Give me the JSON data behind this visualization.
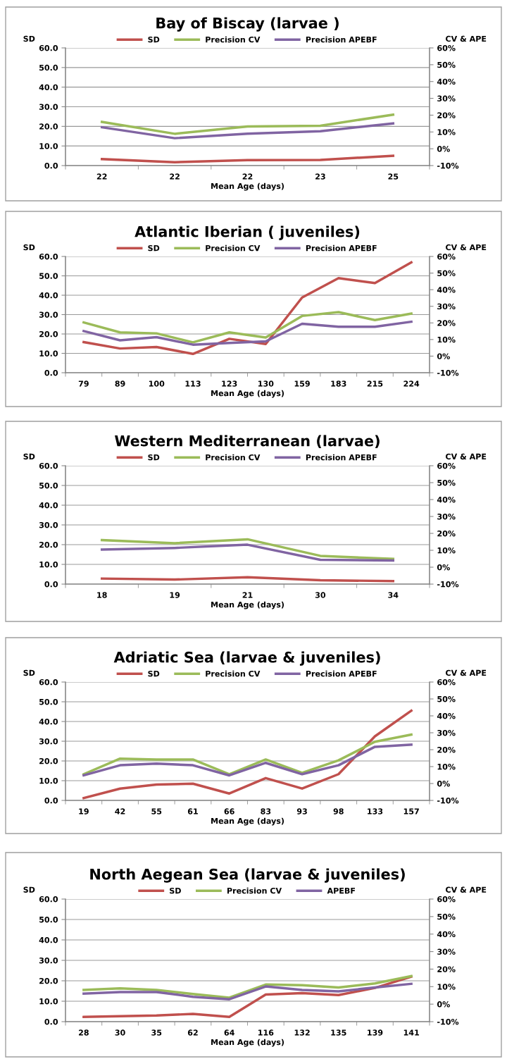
{
  "chart_data": [
    {
      "type": "line",
      "title": "Bay of Biscay (larvae )",
      "xlabel": "Mean Age (days)",
      "ylabel": "SD",
      "y2label": "CV & APE",
      "categories": [
        "22",
        "22",
        "22",
        "23",
        "25"
      ],
      "series": [
        {
          "name": "SD",
          "color": "#c0504d",
          "values": [
            3.3,
            1.7,
            2.8,
            2.9,
            5.0
          ]
        },
        {
          "name": "Precision CV",
          "color": "#9bbb59",
          "axis": "y2",
          "values": [
            16.0,
            8.9,
            13.3,
            13.7,
            20.3
          ]
        },
        {
          "name": "Precision APEBF",
          "color": "#8064a2",
          "axis": "y2",
          "values": [
            12.8,
            6.3,
            9.0,
            10.4,
            15.1
          ]
        }
      ],
      "ylim": [
        0,
        60
      ],
      "yticks": [
        {
          "value": 0,
          "label": "0.0"
        },
        {
          "value": 10,
          "label": "10.0"
        },
        {
          "value": 20,
          "label": "20.0"
        },
        {
          "value": 30,
          "label": "30.0"
        },
        {
          "value": 40,
          "label": "40.0"
        },
        {
          "value": 50,
          "label": "50.0"
        },
        {
          "value": 60,
          "label": "60.0"
        }
      ],
      "y2lim": [
        -10,
        60
      ],
      "y2ticks": [
        {
          "value": -10,
          "label": "-10%"
        },
        {
          "value": 0,
          "label": "0%"
        },
        {
          "value": 10,
          "label": "10%"
        },
        {
          "value": 20,
          "label": "20%"
        },
        {
          "value": 30,
          "label": "30%"
        },
        {
          "value": 40,
          "label": "40%"
        },
        {
          "value": 50,
          "label": "50%"
        },
        {
          "value": 60,
          "label": "60%"
        }
      ],
      "grid": "y",
      "legend": "top",
      "line_style": "solid"
    },
    {
      "type": "line",
      "title": "Atlantic Iberian ( juveniles)",
      "xlabel": "Mean Age (days)",
      "ylabel": "SD",
      "y2label": "CV & APE",
      "categories": [
        "79",
        "89",
        "100",
        "113",
        "123",
        "130",
        "159",
        "183",
        "215",
        "224"
      ],
      "series": [
        {
          "name": "SD",
          "color": "#c0504d",
          "values": [
            15.8,
            12.5,
            13.3,
            9.7,
            17.5,
            14.8,
            38.8,
            48.8,
            46.3,
            57.0
          ]
        },
        {
          "name": "Precision CV",
          "color": "#9bbb59",
          "axis": "y2",
          "values": [
            20.3,
            14.3,
            13.7,
            8.3,
            14.3,
            11.2,
            24.2,
            26.5,
            21.7,
            25.6
          ]
        },
        {
          "name": "Precision APEBF",
          "color": "#8064a2",
          "axis": "y2",
          "values": [
            15.1,
            9.5,
            11.4,
            6.9,
            7.9,
            8.9,
            19.5,
            17.7,
            17.7,
            20.7
          ]
        }
      ],
      "ylim": [
        0,
        60
      ],
      "yticks": [
        {
          "value": 0,
          "label": "0.0"
        },
        {
          "value": 10,
          "label": "10.0"
        },
        {
          "value": 20,
          "label": "20.0"
        },
        {
          "value": 30,
          "label": "30.0"
        },
        {
          "value": 40,
          "label": "40.0"
        },
        {
          "value": 50,
          "label": "50.0"
        },
        {
          "value": 60,
          "label": "60.0"
        }
      ],
      "y2lim": [
        -10,
        60
      ],
      "y2ticks": [
        {
          "value": -10,
          "label": "-10%"
        },
        {
          "value": 0,
          "label": "0%"
        },
        {
          "value": 10,
          "label": "10%"
        },
        {
          "value": 20,
          "label": "20%"
        },
        {
          "value": 30,
          "label": "30%"
        },
        {
          "value": 40,
          "label": "40%"
        },
        {
          "value": 50,
          "label": "50%"
        },
        {
          "value": 60,
          "label": "60%"
        }
      ],
      "grid": "y",
      "legend": "top",
      "line_style": "solid"
    },
    {
      "type": "line",
      "title": "Western Mediterranean (larvae)",
      "xlabel": "Mean Age (days)",
      "ylabel": "SD",
      "y2label": "CV & APE",
      "categories": [
        "18",
        "19",
        "21",
        "30",
        "34"
      ],
      "series": [
        {
          "name": "SD",
          "color": "#c0504d",
          "values": [
            2.8,
            2.3,
            3.5,
            2.0,
            1.5
          ]
        },
        {
          "name": "Precision CV",
          "color": "#9bbb59",
          "axis": "y2",
          "values": [
            16.0,
            14.2,
            16.5,
            6.7,
            4.9
          ]
        },
        {
          "name": "Precision APEBF",
          "color": "#8064a2",
          "axis": "y2",
          "values": [
            10.4,
            11.4,
            13.3,
            4.4,
            4.0
          ]
        }
      ],
      "ylim": [
        0,
        60
      ],
      "yticks": [
        {
          "value": 0,
          "label": "0.0"
        },
        {
          "value": 10,
          "label": "10.0"
        },
        {
          "value": 20,
          "label": "20.0"
        },
        {
          "value": 30,
          "label": "30.0"
        },
        {
          "value": 40,
          "label": "40.0"
        },
        {
          "value": 50,
          "label": "50.0"
        },
        {
          "value": 60,
          "label": "60.0"
        }
      ],
      "y2lim": [
        -10,
        60
      ],
      "y2ticks": [
        {
          "value": -10,
          "label": "-10%"
        },
        {
          "value": 0,
          "label": "0%"
        },
        {
          "value": 10,
          "label": "10%"
        },
        {
          "value": 20,
          "label": "20%"
        },
        {
          "value": 30,
          "label": "30%"
        },
        {
          "value": 40,
          "label": "40%"
        },
        {
          "value": 50,
          "label": "50%"
        },
        {
          "value": 60,
          "label": "60%"
        }
      ],
      "grid": "y",
      "legend": "top",
      "line_style": "solid"
    },
    {
      "type": "line",
      "title": "Adriatic Sea (larvae & juveniles)",
      "xlabel": "Mean Age (days)",
      "ylabel": "SD",
      "y2label": "CV & APE",
      "categories": [
        "19",
        "42",
        "55",
        "61",
        "66",
        "83",
        "93",
        "98",
        "133",
        "157"
      ],
      "series": [
        {
          "name": "SD",
          "color": "#c0504d",
          "values": [
            1.2,
            6.0,
            8.0,
            8.5,
            3.5,
            11.3,
            6.0,
            13.3,
            32.5,
            45.5
          ]
        },
        {
          "name": "Precision CV",
          "color": "#9bbb59",
          "axis": "y2",
          "values": [
            5.5,
            14.7,
            14.2,
            14.2,
            5.5,
            14.2,
            6.3,
            13.7,
            24.7,
            28.9
          ]
        },
        {
          "name": "Precision APEBF",
          "color": "#8064a2",
          "axis": "y2",
          "values": [
            4.8,
            10.8,
            11.8,
            10.8,
            4.8,
            12.2,
            5.5,
            10.8,
            21.7,
            23.0
          ]
        }
      ],
      "ylim": [
        0,
        60
      ],
      "yticks": [
        {
          "value": 0,
          "label": "0.0"
        },
        {
          "value": 10,
          "label": "10.0"
        },
        {
          "value": 20,
          "label": "20.0"
        },
        {
          "value": 30,
          "label": "30.0"
        },
        {
          "value": 40,
          "label": "40.0"
        },
        {
          "value": 50,
          "label": "50.0"
        },
        {
          "value": 60,
          "label": "60.0"
        }
      ],
      "y2lim": [
        -10,
        60
      ],
      "y2ticks": [
        {
          "value": -10,
          "label": "-10%"
        },
        {
          "value": 0,
          "label": "0%"
        },
        {
          "value": 10,
          "label": "10%"
        },
        {
          "value": 20,
          "label": "20%"
        },
        {
          "value": 30,
          "label": "30%"
        },
        {
          "value": 40,
          "label": "40%"
        },
        {
          "value": 50,
          "label": "50%"
        },
        {
          "value": 60,
          "label": "60%"
        }
      ],
      "grid": "y",
      "legend": "top",
      "line_style": "solid"
    },
    {
      "type": "line",
      "title": "North Aegean Sea (larvae & juveniles)",
      "xlabel": "Mean Age (days)",
      "ylabel": "SD",
      "y2label": "CV & APE",
      "categories": [
        "28",
        "30",
        "35",
        "62",
        "64",
        "116",
        "132",
        "135",
        "139",
        "141"
      ],
      "series": [
        {
          "name": "SD",
          "color": "#c0504d",
          "values": [
            2.3,
            2.7,
            3.0,
            3.8,
            2.3,
            13.3,
            14.0,
            13.0,
            16.5,
            22.0
          ]
        },
        {
          "name": "Precision CV",
          "color": "#9bbb59",
          "axis": "y2",
          "values": [
            8.1,
            9.0,
            8.1,
            5.8,
            3.7,
            11.2,
            10.8,
            9.5,
            11.8,
            16.0
          ]
        },
        {
          "name": "APEBF",
          "color": "#8064a2",
          "axis": "y2",
          "values": [
            6.0,
            6.9,
            6.9,
            4.2,
            2.8,
            10.1,
            8.1,
            7.3,
            9.5,
            11.6
          ]
        }
      ],
      "ylim": [
        0,
        60
      ],
      "yticks": [
        {
          "value": 0,
          "label": "0.0"
        },
        {
          "value": 10,
          "label": "10.0"
        },
        {
          "value": 20,
          "label": "20.0"
        },
        {
          "value": 30,
          "label": "30.0"
        },
        {
          "value": 40,
          "label": "40.0"
        },
        {
          "value": 50,
          "label": "50.0"
        },
        {
          "value": 60,
          "label": "60.0"
        }
      ],
      "y2lim": [
        -10,
        60
      ],
      "y2ticks": [
        {
          "value": -10,
          "label": "-10%"
        },
        {
          "value": 0,
          "label": "0%"
        },
        {
          "value": 10,
          "label": "10%"
        },
        {
          "value": 20,
          "label": "20%"
        },
        {
          "value": 30,
          "label": "30%"
        },
        {
          "value": 40,
          "label": "40%"
        },
        {
          "value": 50,
          "label": "50%"
        },
        {
          "value": 60,
          "label": "60%"
        }
      ],
      "grid": "y",
      "legend": "top",
      "line_style": "solid"
    }
  ]
}
